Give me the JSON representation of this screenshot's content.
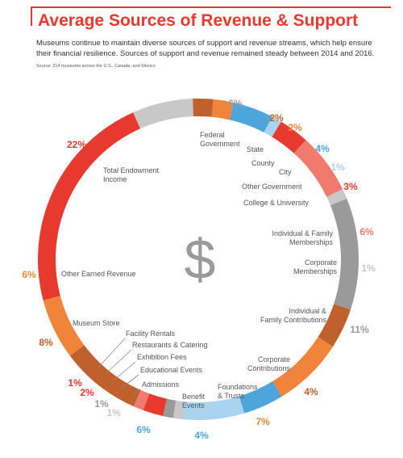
{
  "title": "Average Sources of Revenue & Support",
  "subtitle": "Museums continue to maintain diverse sources of support and revenue streams, which help ensure their financial resilience. Sources of support and revenue remained steady between 2014 and 2016.",
  "source": "Source: 214 museums across the U.S., Canada, and Mexico",
  "center_symbol": "$",
  "colors": {
    "red": "#e8392e",
    "orange": "#f0843a",
    "dark_orange": "#c0602c",
    "gray": "#9a9a9a",
    "light_gray": "#c8c8c8",
    "blue": "#4ea5dc",
    "light_blue": "#a9d4f0",
    "salmon": "#ef7a6d"
  },
  "chart_data": {
    "type": "pie",
    "style": "donut",
    "title": "Average Sources of Revenue & Support",
    "slices": [
      {
        "label": "Federal Government",
        "pct_label": "6%",
        "value": 6,
        "color": "#c8c8c8",
        "pct_color": "#9a9a9a"
      },
      {
        "label": "State",
        "pct_label": "2%",
        "value": 2,
        "color": "#c0602c",
        "pct_color": "#c0602c"
      },
      {
        "label": "County",
        "pct_label": "2%",
        "value": 2,
        "color": "#f0843a",
        "pct_color": "#f0843a"
      },
      {
        "label": "City",
        "pct_label": "4%",
        "value": 4,
        "color": "#4ea5dc",
        "pct_color": "#4ea5dc"
      },
      {
        "label": "Other Government",
        "pct_label": "1%",
        "value": 1,
        "color": "#a9d4f0",
        "pct_color": "#a9d4f0"
      },
      {
        "label": "College & University",
        "pct_label": "3%",
        "value": 3,
        "color": "#e8392e",
        "pct_color": "#e8392e"
      },
      {
        "label": "Individual & Family Memberships",
        "pct_label": "6%",
        "value": 6,
        "color": "#ef7a6d",
        "pct_color": "#ef7a6d"
      },
      {
        "label": "Corporate Memberships",
        "pct_label": "1%",
        "value": 1,
        "color": "#c8c8c8",
        "pct_color": "#c8c8c8"
      },
      {
        "label": "Individual & Family Contributions",
        "pct_label": "11%",
        "value": 11,
        "color": "#9a9a9a",
        "pct_color": "#9a9a9a"
      },
      {
        "label": "Corporate Contributions",
        "pct_label": "4%",
        "value": 4,
        "color": "#c0602c",
        "pct_color": "#c0602c"
      },
      {
        "label": "Foundations & Trusts",
        "pct_label": "7%",
        "value": 7,
        "color": "#f0843a",
        "pct_color": "#f0843a"
      },
      {
        "label": "Benefit Events",
        "pct_label": "4%",
        "value": 4,
        "color": "#4ea5dc",
        "pct_color": "#4ea5dc"
      },
      {
        "label": "Admissions",
        "pct_label": "6%",
        "value": 6,
        "color": "#a9d4f0",
        "pct_color": "#4ea5dc"
      },
      {
        "label": "Educational Events",
        "pct_label": "1%",
        "value": 1,
        "color": "#c8c8c8",
        "pct_color": "#c8c8c8"
      },
      {
        "label": "Exhibition Fees",
        "pct_label": "1%",
        "value": 1,
        "color": "#9a9a9a",
        "pct_color": "#9a9a9a"
      },
      {
        "label": "Restaurants & Catering",
        "pct_label": "2%",
        "value": 2,
        "color": "#e8392e",
        "pct_color": "#e8392e"
      },
      {
        "label": "Facility Rentals",
        "pct_label": "1%",
        "value": 1,
        "color": "#ef7a6d",
        "pct_color": "#e8392e"
      },
      {
        "label": "Museum Store",
        "pct_label": "8%",
        "value": 8,
        "color": "#c0602c",
        "pct_color": "#c0602c"
      },
      {
        "label": "Other Earned Revenue",
        "pct_label": "6%",
        "value": 6,
        "color": "#f0843a",
        "pct_color": "#f0843a"
      },
      {
        "label": "Total Endowment Income",
        "pct_label": "22%",
        "value": 22,
        "color": "#e8392e",
        "pct_color": "#e8392e"
      }
    ]
  }
}
